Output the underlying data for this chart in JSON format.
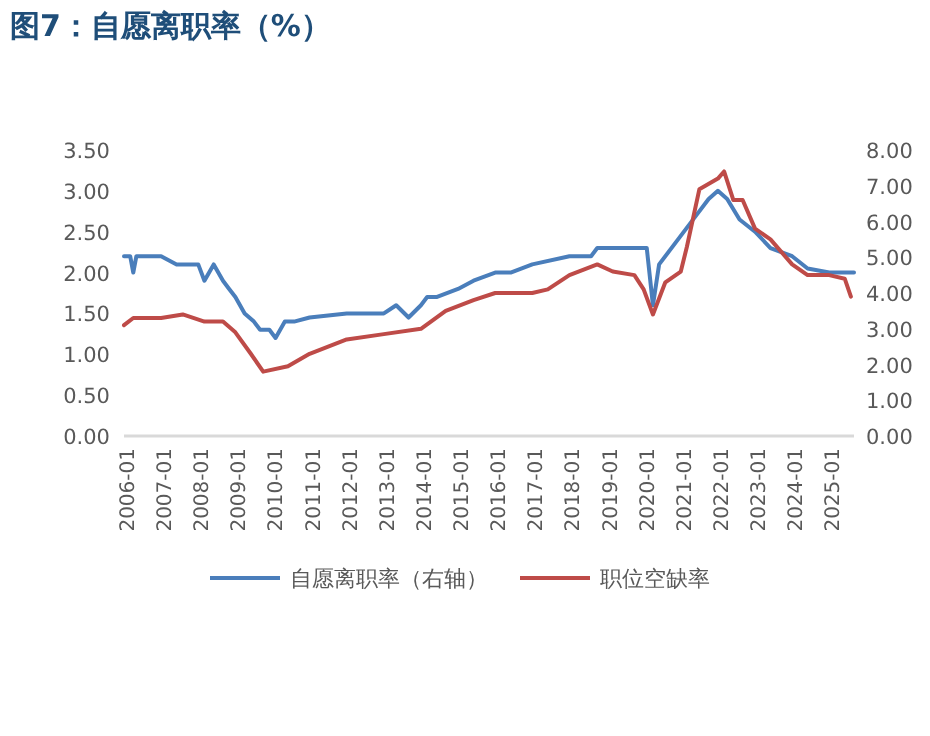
{
  "chart_data": {
    "type": "line",
    "title": "图7：自愿离职率（%）",
    "legend": "bottom",
    "grid": false,
    "marker": "none",
    "line_style": "solid",
    "xlim": [
      "2006-01",
      "2025-09"
    ],
    "xticks": [
      "2006-01",
      "2007-01",
      "2008-01",
      "2009-01",
      "2010-01",
      "2011-01",
      "2012-01",
      "2013-01",
      "2014-01",
      "2015-01",
      "2016-01",
      "2017-01",
      "2018-01",
      "2019-01",
      "2020-01",
      "2021-01",
      "2022-01",
      "2023-01",
      "2024-01",
      "2025-01"
    ],
    "ylim": [
      0,
      3.5
    ],
    "yticks": [
      {
        "value": 0,
        "label": "0.00"
      },
      {
        "value": 0.5,
        "label": "0.50"
      },
      {
        "value": 1,
        "label": "1.00"
      },
      {
        "value": 1.5,
        "label": "1.50"
      },
      {
        "value": 2,
        "label": "2.00"
      },
      {
        "value": 2.5,
        "label": "2.50"
      },
      {
        "value": 3,
        "label": "3.00"
      },
      {
        "value": 3.5,
        "label": "3.50"
      }
    ],
    "y2lim": [
      0,
      8
    ],
    "y2ticks": [
      {
        "value": 0,
        "label": "0.00"
      },
      {
        "value": 1,
        "label": "1.00"
      },
      {
        "value": 2,
        "label": "2.00"
      },
      {
        "value": 3,
        "label": "3.00"
      },
      {
        "value": 4,
        "label": "4.00"
      },
      {
        "value": 5,
        "label": "5.00"
      },
      {
        "value": 6,
        "label": "6.00"
      },
      {
        "value": 7,
        "label": "7.00"
      },
      {
        "value": 8,
        "label": "8.00"
      }
    ],
    "series": [
      {
        "name": "自愿离职率（右轴）",
        "color": "#4a7ebb",
        "axis": "y",
        "x": [
          "2006-01",
          "2006-03",
          "2006-04",
          "2006-05",
          "2007-01",
          "2007-06",
          "2008-01",
          "2008-03",
          "2008-06",
          "2008-09",
          "2008-11",
          "2009-01",
          "2009-04",
          "2009-07",
          "2009-09",
          "2009-12",
          "2010-02",
          "2010-05",
          "2010-08",
          "2011-01",
          "2012-01",
          "2013-01",
          "2013-05",
          "2013-09",
          "2014-01",
          "2014-03",
          "2014-06",
          "2015-01",
          "2015-06",
          "2016-01",
          "2016-06",
          "2017-01",
          "2018-01",
          "2018-08",
          "2018-10",
          "2019-12",
          "2020-02",
          "2020-04",
          "2020-06",
          "2020-12",
          "2021-06",
          "2021-10",
          "2022-01",
          "2022-04",
          "2022-08",
          "2023-01",
          "2023-06",
          "2024-01",
          "2024-06",
          "2025-01",
          "2025-06",
          "2025-09"
        ],
        "values": [
          2.2,
          2.2,
          2.0,
          2.2,
          2.2,
          2.1,
          2.1,
          1.9,
          2.1,
          1.9,
          1.8,
          1.7,
          1.5,
          1.4,
          1.3,
          1.3,
          1.2,
          1.4,
          1.4,
          1.45,
          1.5,
          1.5,
          1.6,
          1.45,
          1.6,
          1.7,
          1.7,
          1.8,
          1.9,
          2.0,
          2.0,
          2.1,
          2.2,
          2.2,
          2.3,
          2.3,
          2.3,
          1.6,
          2.1,
          2.4,
          2.7,
          2.9,
          3.0,
          2.9,
          2.65,
          2.5,
          2.3,
          2.2,
          2.05,
          2.0,
          2.0,
          2.0
        ]
      },
      {
        "name": "职位空缺率",
        "color": "#be4b48",
        "axis": "y2",
        "x": [
          "2006-01",
          "2006-04",
          "2007-01",
          "2007-08",
          "2008-03",
          "2008-09",
          "2009-01",
          "2009-06",
          "2009-10",
          "2010-06",
          "2011-01",
          "2012-01",
          "2013-01",
          "2014-01",
          "2014-09",
          "2015-06",
          "2016-01",
          "2017-01",
          "2017-06",
          "2018-01",
          "2018-10",
          "2019-03",
          "2019-10",
          "2020-01",
          "2020-04",
          "2020-08",
          "2021-01",
          "2021-03",
          "2021-07",
          "2022-01",
          "2022-03",
          "2022-06",
          "2022-09",
          "2023-01",
          "2023-06",
          "2024-01",
          "2024-06",
          "2025-01",
          "2025-06",
          "2025-08"
        ],
        "values": [
          3.1,
          3.3,
          3.3,
          3.4,
          3.2,
          3.2,
          2.9,
          2.3,
          1.8,
          1.95,
          2.3,
          2.7,
          2.85,
          3.0,
          3.5,
          3.8,
          4.0,
          4.0,
          4.1,
          4.5,
          4.8,
          4.6,
          4.5,
          4.1,
          3.4,
          4.3,
          4.6,
          5.3,
          6.9,
          7.2,
          7.4,
          6.6,
          6.6,
          5.8,
          5.5,
          4.8,
          4.5,
          4.5,
          4.4,
          3.9
        ]
      }
    ]
  }
}
